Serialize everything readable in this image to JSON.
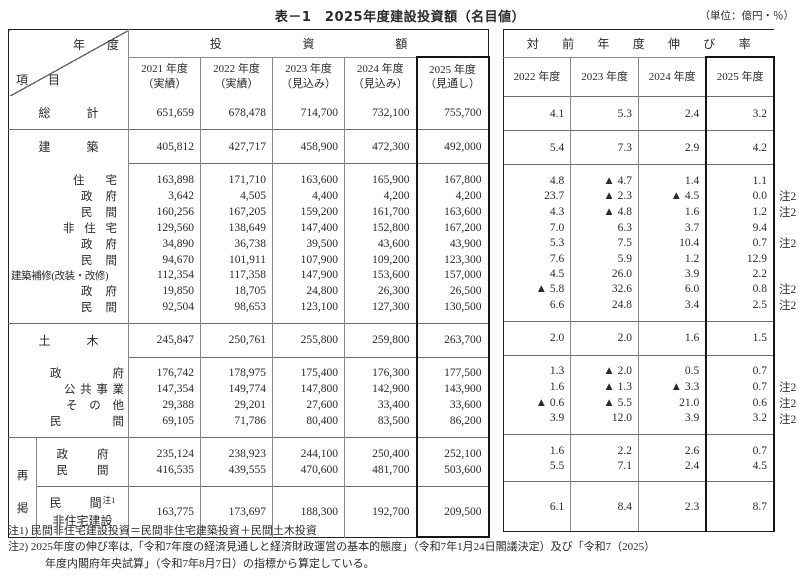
{
  "title": "表－1　2025年度建設投資額（名目値）",
  "unit": "（単位：億円・％）",
  "corner": {
    "top": "年度",
    "bottom": "項目"
  },
  "invest_header": {
    "group": "投資額",
    "years": [
      [
        "2021 年度",
        "（実績）"
      ],
      [
        "2022 年度",
        "（実績）"
      ],
      [
        "2023 年度",
        "（見込み）"
      ],
      [
        "2024 年度",
        "（見込み）"
      ],
      [
        "2025 年度",
        "（見通し）"
      ]
    ]
  },
  "growth_header": {
    "group": "対前年度伸び率",
    "years": [
      "2022 年度",
      "2023 年度",
      "2024 年度",
      "2025 年度"
    ]
  },
  "saikei": "再掲",
  "rows": [
    {
      "label": "総計",
      "cls": "major",
      "invest": [
        "651,659",
        "678,478",
        "714,700",
        "732,100",
        "755,700"
      ],
      "growth": [
        "4.1",
        "5.3",
        "2.4",
        "3.2"
      ],
      "note": ""
    },
    {
      "label": "建築",
      "cls": "major",
      "invest": [
        "405,812",
        "427,717",
        "458,900",
        "472,300",
        "492,000"
      ],
      "growth": [
        "5.4",
        "7.3",
        "2.9",
        "4.2"
      ],
      "note": ""
    },
    {
      "label": "住宅",
      "cls": "s1",
      "invest": [
        "163,898",
        "171,710",
        "163,600",
        "165,900",
        "167,800"
      ],
      "growth": [
        "4.8",
        "▲ 4.7",
        "1.4",
        "1.1"
      ],
      "note": ""
    },
    {
      "label": "政府",
      "cls": "s2",
      "invest": [
        "3,642",
        "4,505",
        "4,400",
        "4,200",
        "4,200"
      ],
      "growth": [
        "23.7",
        "▲ 2.3",
        "▲ 4.5",
        "0.0"
      ],
      "note": "注2"
    },
    {
      "label": "民間",
      "cls": "s2",
      "invest": [
        "160,256",
        "167,205",
        "159,200",
        "161,700",
        "163,600"
      ],
      "growth": [
        "4.3",
        "▲ 4.8",
        "1.6",
        "1.2"
      ],
      "note": "注2"
    },
    {
      "label": "非住宅",
      "cls": "s3",
      "invest": [
        "129,560",
        "138,649",
        "147,400",
        "152,800",
        "167,200"
      ],
      "growth": [
        "7.0",
        "6.3",
        "3.7",
        "9.4"
      ],
      "note": ""
    },
    {
      "label": "政府",
      "cls": "s2",
      "invest": [
        "34,890",
        "36,738",
        "39,500",
        "43,600",
        "43,900"
      ],
      "growth": [
        "5.3",
        "7.5",
        "10.4",
        "0.7"
      ],
      "note": "注2"
    },
    {
      "label": "民間",
      "cls": "s2",
      "invest": [
        "94,670",
        "101,911",
        "107,900",
        "109,200",
        "123,300"
      ],
      "growth": [
        "7.6",
        "5.9",
        "1.2",
        "12.9"
      ],
      "note": ""
    },
    {
      "label": "建築補修(改装・改修)",
      "cls": "full",
      "invest": [
        "112,354",
        "117,358",
        "147,900",
        "153,600",
        "157,000"
      ],
      "growth": [
        "4.5",
        "26.0",
        "3.9",
        "2.2"
      ],
      "note": ""
    },
    {
      "label": "政府",
      "cls": "s2",
      "invest": [
        "19,850",
        "18,705",
        "24,800",
        "26,300",
        "26,500"
      ],
      "growth": [
        "▲ 5.8",
        "32.6",
        "6.0",
        "0.8"
      ],
      "note": "注2"
    },
    {
      "label": "民間",
      "cls": "s2",
      "invest": [
        "92,504",
        "98,653",
        "123,100",
        "127,300",
        "130,500"
      ],
      "growth": [
        "6.6",
        "24.8",
        "3.4",
        "2.5"
      ],
      "note": "注2"
    },
    {
      "label": "土木",
      "cls": "major",
      "invest": [
        "245,847",
        "250,761",
        "255,800",
        "259,800",
        "263,700"
      ],
      "growth": [
        "2.0",
        "2.0",
        "1.6",
        "1.5"
      ],
      "note": ""
    },
    {
      "label": "政府",
      "cls": "c1",
      "invest": [
        "176,742",
        "178,975",
        "175,400",
        "176,300",
        "177,500"
      ],
      "growth": [
        "1.3",
        "▲ 2.0",
        "0.5",
        "0.7"
      ],
      "note": ""
    },
    {
      "label": "公共事業",
      "cls": "c2",
      "invest": [
        "147,354",
        "149,774",
        "147,800",
        "142,900",
        "143,900"
      ],
      "growth": [
        "1.6",
        "▲ 1.3",
        "▲ 3.3",
        "0.7"
      ],
      "note": "注2"
    },
    {
      "label": "その他",
      "cls": "c3",
      "invest": [
        "29,388",
        "29,201",
        "27,600",
        "33,400",
        "33,600"
      ],
      "growth": [
        "▲ 0.6",
        "▲ 5.5",
        "21.0",
        "0.6"
      ],
      "note": "注2"
    },
    {
      "label": "民間",
      "cls": "c1",
      "invest": [
        "69,105",
        "71,786",
        "80,400",
        "83,500",
        "86,200"
      ],
      "growth": [
        "3.9",
        "12.0",
        "3.9",
        "3.2"
      ],
      "note": "注2"
    },
    {
      "label": "政府",
      "cls": "r1",
      "invest": [
        "235,124",
        "238,923",
        "244,100",
        "250,400",
        "252,100"
      ],
      "growth": [
        "1.6",
        "2.2",
        "2.6",
        "0.7"
      ],
      "note": ""
    },
    {
      "label": "民間",
      "cls": "r1",
      "invest": [
        "416,535",
        "439,555",
        "470,600",
        "481,700",
        "503,600"
      ],
      "growth": [
        "5.5",
        "7.1",
        "2.4",
        "4.5"
      ],
      "note": ""
    },
    {
      "label": "民間",
      "sup": "注1",
      "label2": "非住宅建設",
      "cls": "r2",
      "invest": [
        "163,775",
        "173,697",
        "188,300",
        "192,700",
        "209,500"
      ],
      "growth": [
        "6.1",
        "8.4",
        "2.3",
        "8.7"
      ],
      "note": ""
    }
  ],
  "footnotes": [
    {
      "text": "注1) 民間非住宅建設投資＝民間非住宅建築投資＋民間土木投資",
      "indent": false
    },
    {
      "text": "注2) 2025年度の伸び率は,「令和7年度の経済見通しと経済財政運営の基本的態度」（令和7年1月24日閣議決定）及び「令和7（2025）",
      "indent": false
    },
    {
      "text": "年度内閣府年央試算」（令和7年8月7日）の指標から算定している。",
      "indent": true
    }
  ]
}
